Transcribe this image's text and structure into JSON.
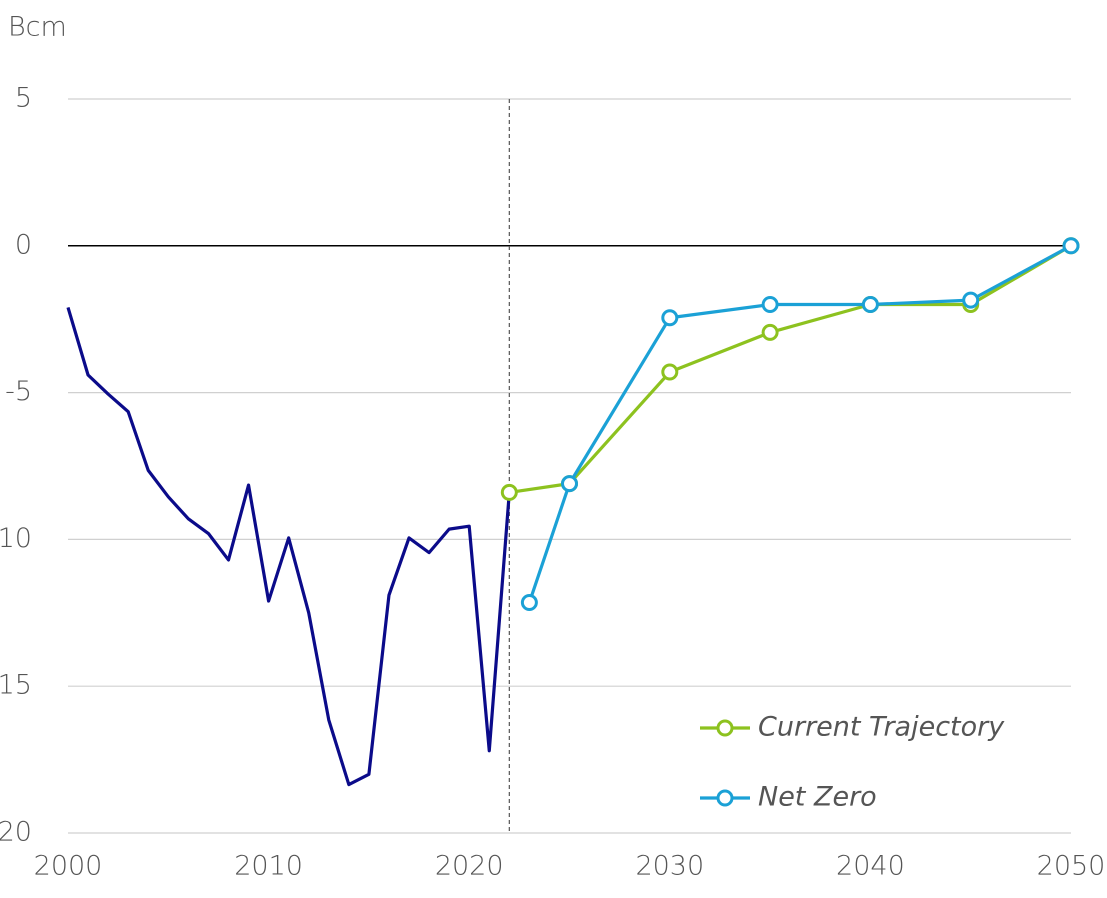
{
  "chart_data": {
    "type": "line",
    "y_label": "Bcm",
    "xlim": [
      2000,
      2050
    ],
    "xticks": [
      2000,
      2010,
      2020,
      2030,
      2040,
      2050
    ],
    "ylim": [
      -20,
      5
    ],
    "yticks": [
      5,
      0,
      -5,
      -10,
      -15,
      -20
    ],
    "grid": true,
    "vline": 2022,
    "legend": "bottom-right",
    "series": [
      {
        "color": "#0b0b8a",
        "markers": false,
        "x": [
          2000,
          2001,
          2002,
          2003,
          2004,
          2005,
          2006,
          2007,
          2008,
          2009,
          2010,
          2011,
          2012,
          2013,
          2014,
          2015,
          2016,
          2017,
          2018,
          2019,
          2020,
          2021,
          2022
        ],
        "values": [
          -2.1,
          -4.4,
          -5.05,
          -5.65,
          -7.65,
          -8.55,
          -9.3,
          -9.8,
          -10.7,
          -8.15,
          -12.1,
          -9.95,
          -12.5,
          -16.15,
          -18.35,
          -18.0,
          -11.9,
          -9.95,
          -10.45,
          -9.65,
          -9.55,
          -17.2,
          -8.4
        ]
      },
      {
        "name": "Current Trajectory",
        "color": "#8dc21f",
        "markers": true,
        "x": [
          2022,
          2025,
          2030,
          2035,
          2040,
          2045,
          2050
        ],
        "values": [
          -8.4,
          -8.1,
          -4.3,
          -2.95,
          -2.0,
          -2.0,
          0
        ]
      },
      {
        "name": "Net Zero",
        "color": "#1ba1d6",
        "markers": true,
        "x": [
          2023,
          2025,
          2030,
          2035,
          2040,
          2045,
          2050
        ],
        "values": [
          -12.15,
          -8.1,
          -2.45,
          -2.0,
          -2.0,
          -1.85,
          0
        ]
      }
    ]
  }
}
